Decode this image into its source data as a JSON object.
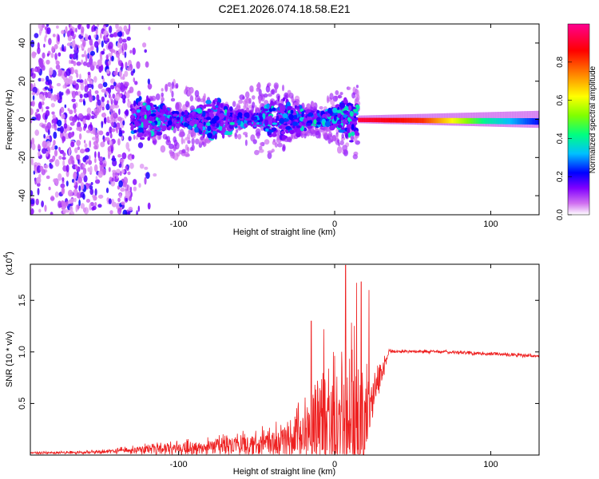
{
  "figure_title": "C2E1.2026.074.18.58.E21",
  "chart_data": [
    {
      "type": "heatmap",
      "title": "C2E1.2026.074.18.58.E21",
      "xlabel": "Height of straight line (km)",
      "ylabel": "Frequency (Hz)",
      "xlim": [
        -195,
        131
      ],
      "ylim": [
        -50,
        50
      ],
      "x_ticks": [
        -100,
        0,
        100
      ],
      "y_ticks": [
        -40,
        -20,
        0,
        20,
        40
      ],
      "colorbar": {
        "label": "Normalized spectral amplitude",
        "range": [
          0.0,
          1.0
        ],
        "ticks": [
          "0.0",
          "0.2",
          "0.4",
          "0.6",
          "0.8"
        ],
        "tick_values": [
          0.0,
          0.2,
          0.4,
          0.6,
          0.8
        ],
        "colors": [
          "#ffffff",
          "#d070f0",
          "#8000ff",
          "#0000ff",
          "#00c0ff",
          "#00ff80",
          "#80ff00",
          "#ffff00",
          "#ff8000",
          "#ff0000",
          "#ff0090"
        ]
      },
      "regions": [
        {
          "name": "noise",
          "x_range": [
            -195,
            -130
          ],
          "freq_spread": 50,
          "amplitude": 0.15
        },
        {
          "name": "broadband",
          "x_range": [
            -130,
            15
          ],
          "freq_spread": 15,
          "amplitude": 0.3
        },
        {
          "name": "coherent",
          "x_range": [
            15,
            131
          ],
          "freq_spread": 2,
          "amplitude": 0.9
        }
      ]
    },
    {
      "type": "line",
      "xlabel": "Height of straight line (km)",
      "ylabel": "SNR (10 * v/v)",
      "y_scale_label": "(x10",
      "y_scale_exp": "4",
      "xlim": [
        -195,
        131
      ],
      "ylim": [
        0.0,
        1.85
      ],
      "x_ticks": [
        -100,
        0,
        100
      ],
      "y_ticks": [
        0.5,
        1.0,
        1.5
      ],
      "y_tick_labels": [
        "0.5",
        "1.0",
        "1.5"
      ],
      "color": "#ee2020",
      "profile": [
        {
          "x": -195,
          "base": 0.02,
          "amp": 0.01
        },
        {
          "x": -150,
          "base": 0.03,
          "amp": 0.02
        },
        {
          "x": -120,
          "base": 0.06,
          "amp": 0.06
        },
        {
          "x": -80,
          "base": 0.08,
          "amp": 0.1
        },
        {
          "x": -40,
          "base": 0.12,
          "amp": 0.18
        },
        {
          "x": -20,
          "base": 0.2,
          "amp": 0.35
        },
        {
          "x": 0,
          "base": 0.28,
          "amp": 0.75
        },
        {
          "x": 10,
          "base": 0.3,
          "amp": 1.0
        },
        {
          "x": 20,
          "base": 0.25,
          "amp": 0.9
        },
        {
          "x": 23,
          "base": 0.5,
          "amp": 0.3
        },
        {
          "x": 35,
          "base": 1.01,
          "amp": 0.02
        },
        {
          "x": 70,
          "base": 1.0,
          "amp": 0.02
        },
        {
          "x": 131,
          "base": 0.96,
          "amp": 0.02
        }
      ],
      "peaks": [
        {
          "x": 7,
          "y": 1.84
        },
        {
          "x": 14,
          "y": 1.67
        },
        {
          "x": 17,
          "y": 1.68
        },
        {
          "x": -15,
          "y": 1.3
        },
        {
          "x": -7,
          "y": 1.22
        },
        {
          "x": 22,
          "y": 1.6
        }
      ]
    }
  ]
}
